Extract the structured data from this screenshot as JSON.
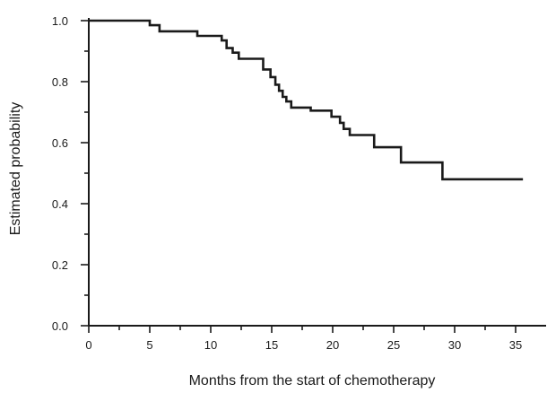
{
  "chart_data": {
    "type": "line",
    "step": true,
    "title": "",
    "xlabel": "Months from the start of chemotherapy",
    "ylabel": "Estimated probability",
    "xlim": [
      0,
      37.5
    ],
    "ylim": [
      0,
      1.0
    ],
    "x_ticks": [
      0,
      5,
      10,
      15,
      20,
      25,
      30,
      35
    ],
    "x_tick_labels": [
      "0",
      "5",
      "10",
      "15",
      "20",
      "25",
      "30",
      "35"
    ],
    "x_minor_ticks": [
      2.5,
      7.5,
      12.5,
      17.5,
      22.5,
      27.5,
      32.5
    ],
    "y_ticks": [
      0,
      0.2,
      0.4,
      0.6,
      0.8,
      1.0
    ],
    "y_tick_labels": [
      "0.0",
      "0.2",
      "0.4",
      "0.6",
      "0.8",
      "1.0"
    ],
    "y_minor_ticks": [
      0.1,
      0.3,
      0.5,
      0.7,
      0.9
    ],
    "grid": false,
    "series": [
      {
        "x": [
          0,
          5.0,
          5.8,
          8.9,
          10.9,
          11.3,
          11.8,
          12.3,
          14.3,
          14.9,
          15.3,
          15.6,
          15.9,
          16.2,
          16.6,
          18.2,
          19.9,
          20.6,
          20.9,
          21.4,
          23.4,
          25.6,
          29.0,
          35.6
        ],
        "y": [
          1.0,
          0.985,
          0.965,
          0.95,
          0.935,
          0.91,
          0.895,
          0.875,
          0.84,
          0.815,
          0.79,
          0.77,
          0.75,
          0.735,
          0.715,
          0.705,
          0.685,
          0.665,
          0.645,
          0.625,
          0.585,
          0.535,
          0.48,
          0.48
        ]
      }
    ]
  }
}
